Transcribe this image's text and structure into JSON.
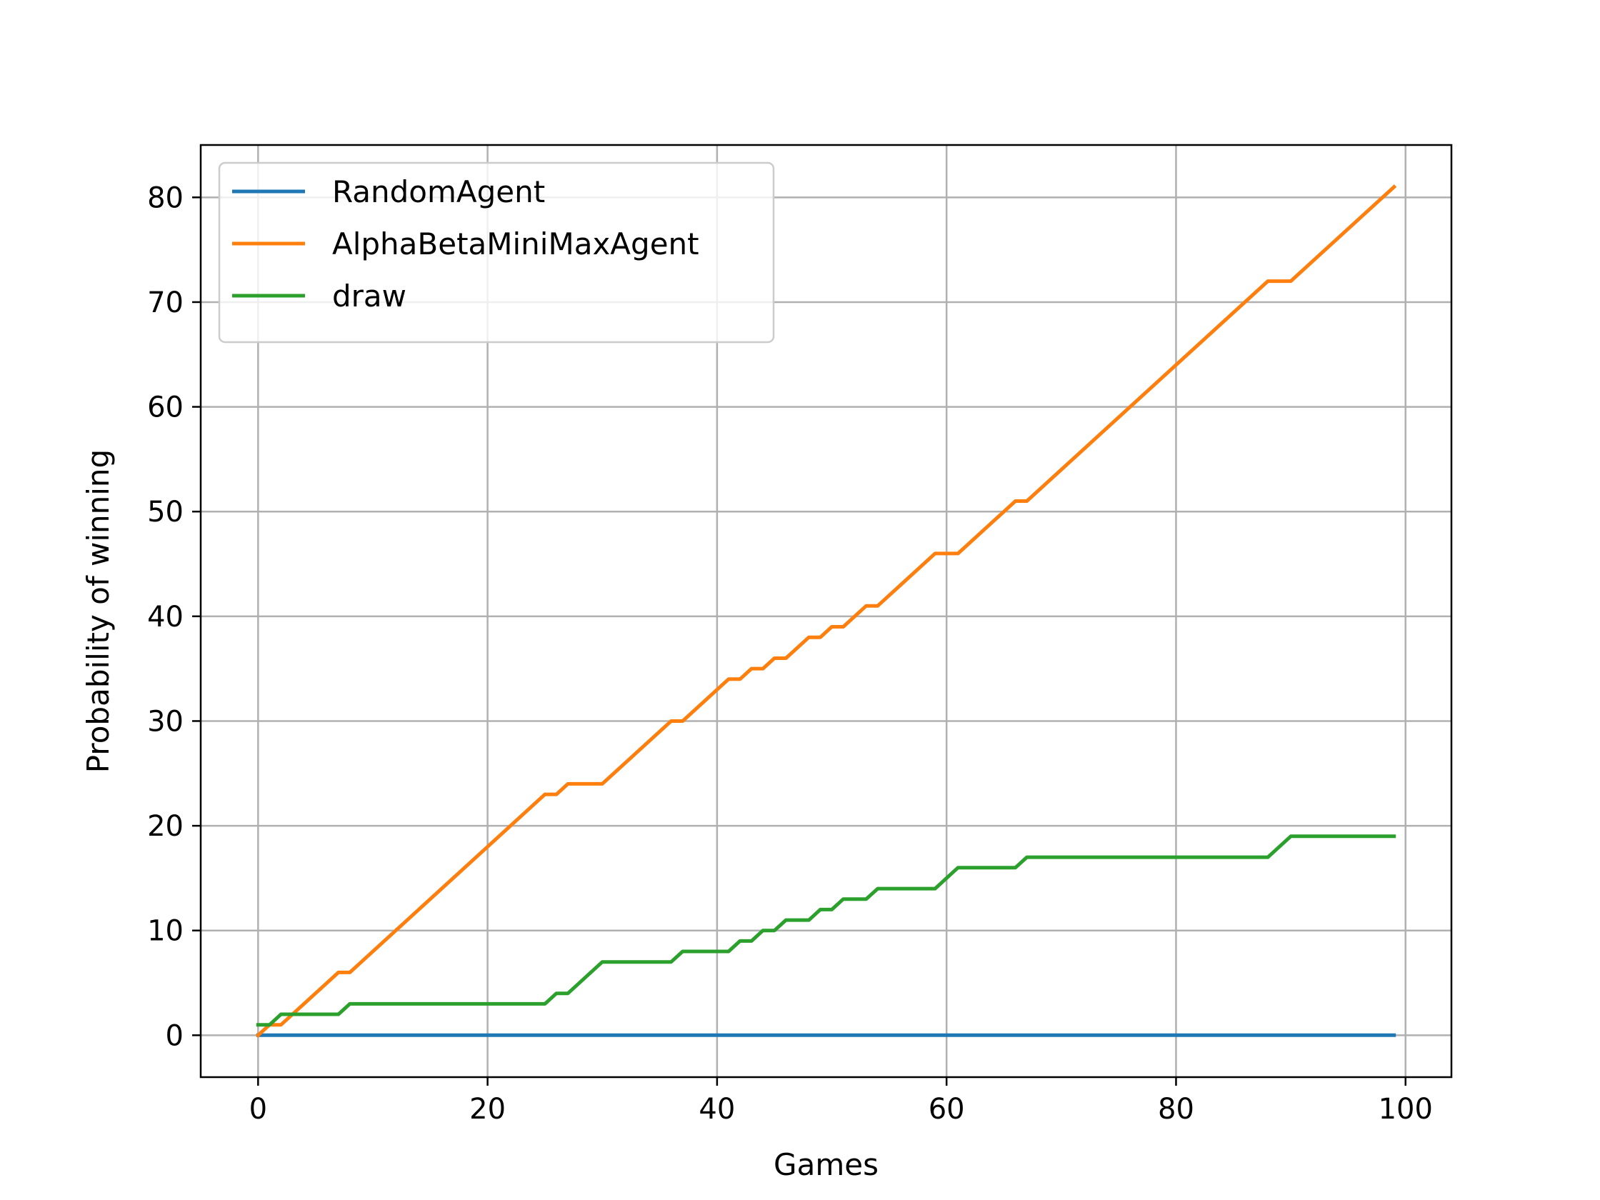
{
  "chart_data": {
    "type": "line",
    "title": "",
    "xlabel": "Games",
    "ylabel": "Probability of winning",
    "xlim": [
      -5,
      104
    ],
    "ylim": [
      -4,
      85
    ],
    "xticks": [
      0,
      20,
      40,
      60,
      80,
      100
    ],
    "yticks": [
      0,
      10,
      20,
      30,
      40,
      50,
      60,
      70,
      80
    ],
    "xtick_labels": [
      "0",
      "20",
      "40",
      "60",
      "80",
      "100"
    ],
    "ytick_labels": [
      "0",
      "10",
      "20",
      "30",
      "40",
      "50",
      "60",
      "70",
      "80"
    ],
    "grid": true,
    "legend": {
      "placement": "upper-left"
    },
    "series": [
      {
        "name": "RandomAgent",
        "color": "#1f77b4",
        "x": [
          0,
          99
        ],
        "y": [
          0,
          0
        ]
      },
      {
        "name": "AlphaBetaMiniMaxAgent",
        "color": "#ff7f0e",
        "x": [
          0,
          1,
          2,
          7,
          8,
          25,
          26,
          27,
          30,
          36,
          37,
          41,
          42,
          43,
          44,
          45,
          46,
          48,
          49,
          50,
          51,
          53,
          54,
          59,
          61,
          66,
          67,
          88,
          90,
          99
        ],
        "y": [
          0,
          1,
          1,
          6,
          6,
          23,
          23,
          24,
          24,
          30,
          30,
          34,
          34,
          35,
          35,
          36,
          36,
          38,
          38,
          39,
          39,
          41,
          41,
          46,
          46,
          51,
          51,
          72,
          72,
          81
        ]
      },
      {
        "name": "draw",
        "color": "#2ca02c",
        "x": [
          0,
          1,
          2,
          7,
          8,
          25,
          26,
          27,
          30,
          36,
          37,
          41,
          42,
          43,
          44,
          45,
          46,
          48,
          49,
          50,
          51,
          53,
          54,
          59,
          61,
          66,
          67,
          88,
          90,
          99
        ],
        "y": [
          1,
          1,
          2,
          2,
          3,
          3,
          4,
          4,
          7,
          7,
          8,
          8,
          9,
          9,
          10,
          10,
          11,
          11,
          12,
          12,
          13,
          13,
          14,
          14,
          16,
          16,
          17,
          17,
          19,
          19
        ]
      }
    ]
  }
}
